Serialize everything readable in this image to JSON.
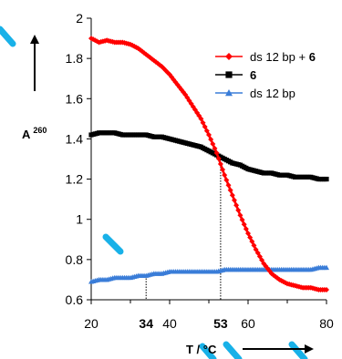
{
  "colors": {
    "background": "#ffffff",
    "watermark": "#00a9e6",
    "series_red": "#ff0000",
    "series_black": "#000000",
    "series_blue": "#3a7dd8",
    "tm_blue": "#1f3fd0",
    "tm_red": "#e01010"
  },
  "chart_data": {
    "type": "line",
    "xlabel": "T / °C",
    "ylabel_main": "A",
    "ylabel_sup": "260",
    "xlim": [
      20,
      80
    ],
    "ylim": [
      0.6,
      2.0
    ],
    "x_ticks": [
      20,
      40,
      60,
      80
    ],
    "y_ticks": [
      0.6,
      0.8,
      1.0,
      1.2,
      1.4,
      1.6,
      1.8,
      2.0
    ],
    "y_tick_labels": [
      "0.6",
      "0.8",
      "1",
      "1.2",
      "1.4",
      "1.6",
      "1.8",
      "2"
    ],
    "x_highlight_ticks": [
      {
        "value": 34,
        "label": "34",
        "color_key": "tm_blue"
      },
      {
        "value": 53,
        "label": "53",
        "color_key": "tm_red"
      }
    ],
    "grid": false,
    "legend_position": "top-right",
    "legend": [
      {
        "label": "ds 12 bp + ",
        "bold_suffix": "6",
        "marker": "diamond",
        "color_key": "series_red"
      },
      {
        "label": "",
        "bold_suffix": "6",
        "marker": "square",
        "color_key": "series_black"
      },
      {
        "label": "ds 12 bp",
        "bold_suffix": "",
        "marker": "triangle",
        "color_key": "series_blue"
      }
    ],
    "series": [
      {
        "id": "ds12-plus-6",
        "marker": "diamond",
        "color_key": "series_red",
        "points": [
          [
            20,
            1.9
          ],
          [
            22,
            1.88
          ],
          [
            24,
            1.89
          ],
          [
            26,
            1.88
          ],
          [
            28,
            1.88
          ],
          [
            30,
            1.87
          ],
          [
            32,
            1.85
          ],
          [
            34,
            1.82
          ],
          [
            36,
            1.79
          ],
          [
            38,
            1.76
          ],
          [
            40,
            1.72
          ],
          [
            42,
            1.67
          ],
          [
            44,
            1.62
          ],
          [
            46,
            1.56
          ],
          [
            48,
            1.5
          ],
          [
            50,
            1.42
          ],
          [
            52,
            1.33
          ],
          [
            54,
            1.22
          ],
          [
            56,
            1.12
          ],
          [
            58,
            1.02
          ],
          [
            60,
            0.93
          ],
          [
            62,
            0.85
          ],
          [
            64,
            0.78
          ],
          [
            66,
            0.73
          ],
          [
            68,
            0.7
          ],
          [
            70,
            0.68
          ],
          [
            72,
            0.67
          ],
          [
            74,
            0.66
          ],
          [
            76,
            0.66
          ],
          [
            78,
            0.65
          ],
          [
            80,
            0.65
          ]
        ]
      },
      {
        "id": "6-alone",
        "marker": "square",
        "color_key": "series_black",
        "points": [
          [
            20,
            1.42
          ],
          [
            22,
            1.43
          ],
          [
            24,
            1.43
          ],
          [
            26,
            1.43
          ],
          [
            28,
            1.42
          ],
          [
            30,
            1.42
          ],
          [
            32,
            1.42
          ],
          [
            34,
            1.42
          ],
          [
            36,
            1.41
          ],
          [
            38,
            1.41
          ],
          [
            40,
            1.4
          ],
          [
            42,
            1.39
          ],
          [
            44,
            1.38
          ],
          [
            46,
            1.37
          ],
          [
            48,
            1.36
          ],
          [
            50,
            1.34
          ],
          [
            52,
            1.32
          ],
          [
            54,
            1.3
          ],
          [
            56,
            1.28
          ],
          [
            58,
            1.27
          ],
          [
            60,
            1.25
          ],
          [
            62,
            1.24
          ],
          [
            64,
            1.23
          ],
          [
            66,
            1.23
          ],
          [
            68,
            1.22
          ],
          [
            70,
            1.22
          ],
          [
            72,
            1.21
          ],
          [
            74,
            1.21
          ],
          [
            76,
            1.21
          ],
          [
            78,
            1.2
          ],
          [
            80,
            1.2
          ]
        ]
      },
      {
        "id": "ds12",
        "marker": "triangle",
        "color_key": "series_blue",
        "points": [
          [
            20,
            0.69
          ],
          [
            22,
            0.7
          ],
          [
            24,
            0.7
          ],
          [
            26,
            0.71
          ],
          [
            28,
            0.71
          ],
          [
            30,
            0.71
          ],
          [
            32,
            0.72
          ],
          [
            34,
            0.72
          ],
          [
            36,
            0.73
          ],
          [
            38,
            0.73
          ],
          [
            40,
            0.74
          ],
          [
            42,
            0.74
          ],
          [
            44,
            0.74
          ],
          [
            46,
            0.74
          ],
          [
            48,
            0.74
          ],
          [
            50,
            0.74
          ],
          [
            52,
            0.74
          ],
          [
            54,
            0.75
          ],
          [
            56,
            0.75
          ],
          [
            58,
            0.75
          ],
          [
            60,
            0.75
          ],
          [
            62,
            0.75
          ],
          [
            64,
            0.75
          ],
          [
            66,
            0.75
          ],
          [
            68,
            0.75
          ],
          [
            70,
            0.75
          ],
          [
            72,
            0.75
          ],
          [
            74,
            0.75
          ],
          [
            76,
            0.75
          ],
          [
            78,
            0.76
          ],
          [
            80,
            0.76
          ]
        ]
      }
    ],
    "guide_lines": [
      {
        "x": 34,
        "series_id": "ds12"
      },
      {
        "x": 53,
        "series_id": "ds12-plus-6"
      }
    ]
  }
}
